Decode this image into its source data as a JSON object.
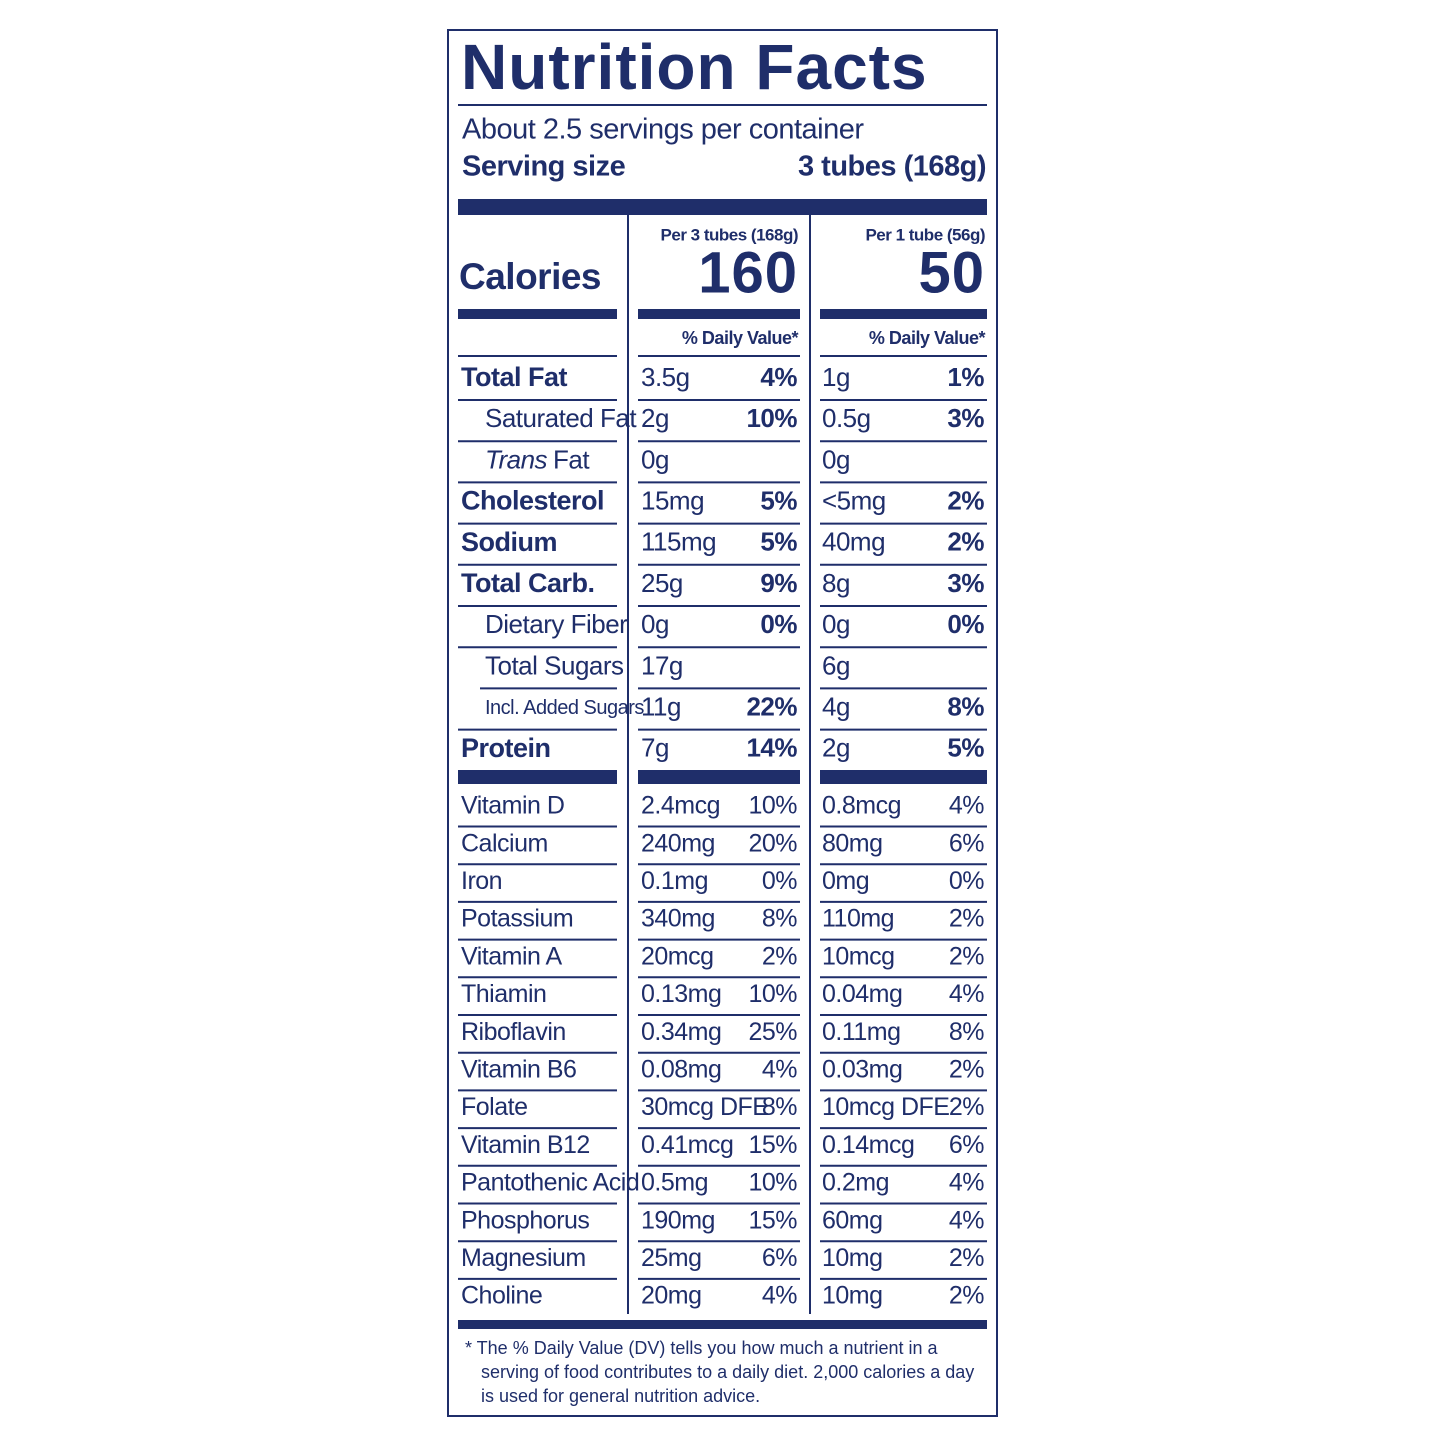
{
  "header": {
    "title": "Nutrition Facts",
    "servings": "About 2.5 servings per container",
    "serving_size_label": "Serving size",
    "serving_size": "3 tubes (168g)"
  },
  "calories": {
    "label": "Calories",
    "columns": [
      {
        "heading": "Per 3 tubes (168g)",
        "value": "160",
        "dv_heading": "% Daily Value*"
      },
      {
        "heading": "Per 1 tube (56g)",
        "value": "50",
        "dv_heading": "% Daily Value*"
      }
    ]
  },
  "nutrients": [
    {
      "name": "Total Fat",
      "values": [
        [
          "3.5g",
          "4%"
        ],
        [
          "1g",
          "1%"
        ]
      ]
    },
    {
      "name": "Saturated Fat",
      "values": [
        [
          "2g",
          "10%"
        ],
        [
          "0.5g",
          "3%"
        ]
      ]
    },
    {
      "name_italic": "Trans",
      "name": "Fat",
      "values": [
        [
          "0g",
          null
        ],
        [
          "0g",
          null
        ]
      ]
    },
    {
      "name": "Cholesterol",
      "values": [
        [
          "15mg",
          "5%"
        ],
        [
          "<5mg",
          "2%"
        ]
      ]
    },
    {
      "name": "Sodium",
      "values": [
        [
          "115mg",
          "5%"
        ],
        [
          "40mg",
          "2%"
        ]
      ]
    },
    {
      "name": "Total Carb.",
      "values": [
        [
          "25g",
          "9%"
        ],
        [
          "8g",
          "3%"
        ]
      ]
    },
    {
      "name": "Dietary Fiber",
      "values": [
        [
          "0g",
          "0%"
        ],
        [
          "0g",
          "0%"
        ]
      ]
    },
    {
      "name": "Total Sugars",
      "values": [
        [
          "17g",
          null
        ],
        [
          "6g",
          null
        ]
      ]
    },
    {
      "name": "Incl. Added Sugars",
      "values": [
        [
          "11g",
          "22%"
        ],
        [
          "4g",
          "8%"
        ]
      ]
    },
    {
      "name": "Protein",
      "values": [
        [
          "7g",
          "14%"
        ],
        [
          "2g",
          "5%"
        ]
      ]
    }
  ],
  "vitamins": [
    {
      "name": "Vitamin D",
      "values": [
        [
          "2.4mcg",
          "10%"
        ],
        [
          "0.8mcg",
          "4%"
        ]
      ]
    },
    {
      "name": "Calcium",
      "values": [
        [
          "240mg",
          "20%"
        ],
        [
          "80mg",
          "6%"
        ]
      ]
    },
    {
      "name": "Iron",
      "values": [
        [
          "0.1mg",
          "0%"
        ],
        [
          "0mg",
          "0%"
        ]
      ]
    },
    {
      "name": "Potassium",
      "values": [
        [
          "340mg",
          "8%"
        ],
        [
          "110mg",
          "2%"
        ]
      ]
    },
    {
      "name": "Vitamin A",
      "values": [
        [
          "20mcg",
          "2%"
        ],
        [
          "10mcg",
          "2%"
        ]
      ]
    },
    {
      "name": "Thiamin",
      "values": [
        [
          "0.13mg",
          "10%"
        ],
        [
          "0.04mg",
          "4%"
        ]
      ]
    },
    {
      "name": "Riboflavin",
      "values": [
        [
          "0.34mg",
          "25%"
        ],
        [
          "0.11mg",
          "8%"
        ]
      ]
    },
    {
      "name": "Vitamin B6",
      "values": [
        [
          "0.08mg",
          "4%"
        ],
        [
          "0.03mg",
          "2%"
        ]
      ]
    },
    {
      "name": "Folate",
      "values": [
        [
          "30mcg DFE",
          "8%"
        ],
        [
          "10mcg DFE",
          "2%"
        ]
      ]
    },
    {
      "name": "Vitamin B12",
      "values": [
        [
          "0.41mcg",
          "15%"
        ],
        [
          "0.14mcg",
          "6%"
        ]
      ]
    },
    {
      "name": "Pantothenic Acid",
      "values": [
        [
          "0.5mg",
          "10%"
        ],
        [
          "0.2mg",
          "4%"
        ]
      ]
    },
    {
      "name": "Phosphorus",
      "values": [
        [
          "190mg",
          "15%"
        ],
        [
          "60mg",
          "4%"
        ]
      ]
    },
    {
      "name": "Magnesium",
      "values": [
        [
          "25mg",
          "6%"
        ],
        [
          "10mg",
          "2%"
        ]
      ]
    },
    {
      "name": "Choline",
      "values": [
        [
          "20mg",
          "4%"
        ],
        [
          "10mg",
          "2%"
        ]
      ]
    }
  ],
  "footnote": [
    "* The % Daily Value (DV) tells you how much a nutrient in a",
    "serving of food contributes to a daily diet. 2,000 calories a day",
    "is used for general nutrition advice."
  ]
}
